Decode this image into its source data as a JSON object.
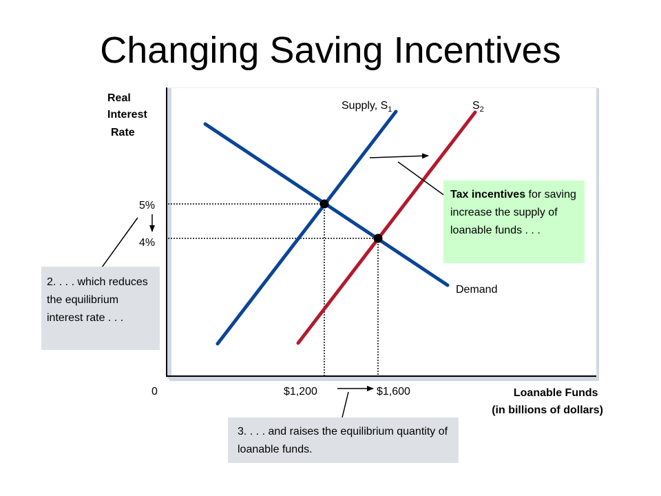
{
  "title": "Changing Saving Incentives",
  "colors": {
    "supply_1": "#0a4596",
    "supply_2": "#b31b2b",
    "demand": "#0a4596",
    "tax_callout_bg": "#ccffcc",
    "note_callout_bg": "#dde1e6"
  },
  "chart_data": {
    "type": "line",
    "title": "",
    "ylabel": [
      "Real",
      "Interest",
      "Rate"
    ],
    "xlabel": [
      "Loanable Funds",
      "(in billions of dollars)"
    ],
    "origin_label": "0",
    "y_ticks": [
      {
        "value": 5,
        "label": "5%"
      },
      {
        "value": 4,
        "label": "4%"
      }
    ],
    "x_ticks": [
      {
        "value": 1200,
        "label": "$1,200"
      },
      {
        "value": 1600,
        "label": "$1,600"
      }
    ],
    "series": [
      {
        "name": "Supply, S",
        "sub": "1",
        "key": "supply_1"
      },
      {
        "name": "S",
        "sub": "2",
        "key": "supply_2"
      },
      {
        "name": "Demand",
        "key": "demand"
      }
    ],
    "equilibria": [
      {
        "x": 1200,
        "y": 5
      },
      {
        "x": 1600,
        "y": 4
      }
    ],
    "grid": false,
    "legend": "none"
  },
  "callouts": {
    "tax": {
      "bold": "Tax incentives",
      "rest": " for saving increase the supply of loanable funds . . ."
    },
    "rate": "2. . . . which reduces the equilibrium interest rate . . .",
    "quantity": "3. . . . and raises the equilibrium quantity of loanable funds."
  }
}
